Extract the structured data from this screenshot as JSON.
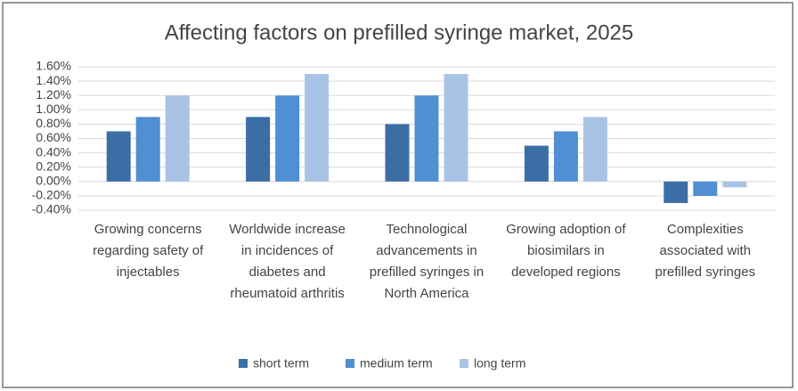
{
  "chart_data": {
    "type": "bar",
    "title": "Affecting factors on prefilled syringe market, 2025",
    "categories": [
      "Growing concerns regarding safety of injectables",
      "Worldwide increase in incidences of diabetes and rheumatoid arthritis",
      "Technological advancements in prefilled syringes in North America",
      "Growing adoption of biosimilars in developed regions",
      "Complexities associated with prefilled syringes"
    ],
    "series": [
      {
        "name": "short term",
        "color": "#3b6ea5",
        "values": [
          0.7,
          0.9,
          0.8,
          0.5,
          -0.3
        ]
      },
      {
        "name": "medium term",
        "color": "#4f8fd2",
        "values": [
          0.9,
          1.2,
          1.2,
          0.7,
          -0.2
        ]
      },
      {
        "name": "long term",
        "color": "#a8c3e6",
        "values": [
          1.2,
          1.5,
          1.5,
          0.9,
          -0.08
        ]
      }
    ],
    "ylim": [
      -0.4,
      1.6
    ],
    "yticks": [
      {
        "value": -0.4,
        "label": "-0.40%"
      },
      {
        "value": -0.2,
        "label": "-0.20%"
      },
      {
        "value": 0,
        "label": "0.00%"
      },
      {
        "value": 0.2,
        "label": "0.20%"
      },
      {
        "value": 0.4,
        "label": "0.40%"
      },
      {
        "value": 0.6,
        "label": "0.60%"
      },
      {
        "value": 0.8,
        "label": "0.80%"
      },
      {
        "value": 1.0,
        "label": "1.00%"
      },
      {
        "value": 1.2,
        "label": "1.20%"
      },
      {
        "value": 1.4,
        "label": "1.40%"
      },
      {
        "value": 1.6,
        "label": "1.60%"
      }
    ],
    "grid": true,
    "legend": "bottom"
  }
}
